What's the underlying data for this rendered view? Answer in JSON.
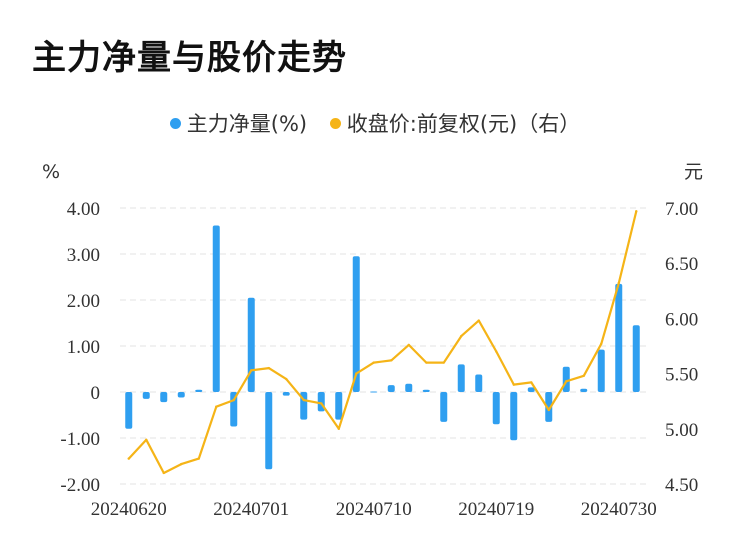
{
  "title": "主力净量与股价走势",
  "legend": {
    "bar_label": "主力净量(%)",
    "line_label": "收盘价:前复权(元)（右）"
  },
  "colors": {
    "bar": "#2f9ff0",
    "line": "#f5b417",
    "grid": "#e3e3e3"
  },
  "chart_data": {
    "type": "bar",
    "y_left_unit": "%",
    "y_right_unit": "元",
    "ylim_left": [
      -2,
      4
    ],
    "ylim_right": [
      4.5,
      7
    ],
    "y_left_ticks": [
      "4.00",
      "3.00",
      "2.00",
      "1.00",
      "0",
      "-1.00",
      "-2.00"
    ],
    "y_right_ticks": [
      "7.00",
      "6.50",
      "6.00",
      "5.50",
      "5.00",
      "4.50"
    ],
    "x_tick_labels": [
      "20240620",
      "20240701",
      "20240710",
      "20240719",
      "20240730"
    ],
    "x_tick_indices": [
      0,
      7,
      14,
      21,
      28
    ],
    "grid": "horizontal-dashed",
    "legend_position": "top",
    "series": [
      {
        "name": "主力净量(%)",
        "type": "bar",
        "axis": "left",
        "values": [
          -0.8,
          -0.15,
          -0.22,
          -0.12,
          0.05,
          3.62,
          -0.75,
          2.05,
          -1.68,
          -0.08,
          -0.6,
          -0.42,
          -0.6,
          2.95,
          0.01,
          0.15,
          0.18,
          0.05,
          -0.65,
          0.6,
          0.38,
          -0.7,
          -1.05,
          0.1,
          -0.65,
          0.55,
          0.07,
          0.92,
          2.35,
          1.45
        ]
      },
      {
        "name": "收盘价:前复权(元)（右）",
        "type": "line",
        "axis": "right",
        "values": [
          4.73,
          4.9,
          4.6,
          4.68,
          4.73,
          5.2,
          5.26,
          5.53,
          5.55,
          5.45,
          5.26,
          5.23,
          5.0,
          5.5,
          5.6,
          5.62,
          5.76,
          5.6,
          5.6,
          5.84,
          5.98,
          5.7,
          5.4,
          5.42,
          5.17,
          5.43,
          5.48,
          5.77,
          6.32,
          6.97
        ]
      }
    ]
  }
}
